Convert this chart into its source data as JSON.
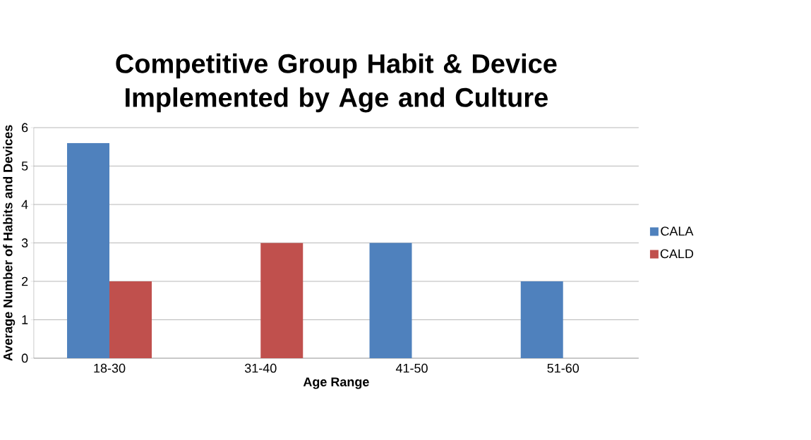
{
  "chart_data": {
    "type": "bar",
    "title": "Competitive Group Habit & Device Implemented by Age and Culture",
    "xlabel": "Age Range",
    "ylabel": "Average Number of Habits and Devices",
    "categories": [
      "18-30",
      "31-40",
      "41-50",
      "51-60"
    ],
    "series": [
      {
        "name": "CALA",
        "color": "#4f81bd",
        "values": [
          5.6,
          0,
          3,
          2
        ]
      },
      {
        "name": "CALD",
        "color": "#c0504d",
        "values": [
          2,
          3,
          0,
          0
        ]
      }
    ],
    "ylim": [
      0,
      6
    ],
    "yticks": [
      0,
      1,
      2,
      3,
      4,
      5,
      6
    ],
    "grid": "y",
    "legend": "right"
  }
}
